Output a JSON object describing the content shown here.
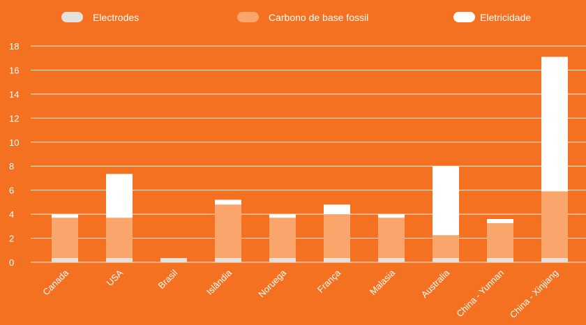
{
  "chart_data": {
    "type": "bar",
    "stacked": true,
    "categories": [
      "Canada",
      "USA",
      "Brasil",
      "Islândia",
      "Noruega",
      "França",
      "Malasia",
      "Australia",
      "China - Yunnan",
      "China - Xinjiang"
    ],
    "series": [
      {
        "name": "Electrodes",
        "color": "#E5E2DE",
        "values": [
          0.35,
          0.35,
          0.35,
          0.35,
          0.35,
          0.35,
          0.35,
          0.35,
          0.35,
          0.35
        ]
      },
      {
        "name": "Carbono de base fossil",
        "color": "#F9A56B",
        "values": [
          3.35,
          3.35,
          0.0,
          4.45,
          3.35,
          3.65,
          3.35,
          1.9,
          2.9,
          5.55
        ]
      },
      {
        "name": "Eletricidade",
        "color": "#FFFFFF",
        "values": [
          0.3,
          3.65,
          0.0,
          0.4,
          0.3,
          0.8,
          0.3,
          5.75,
          0.35,
          11.2
        ]
      }
    ],
    "ylim": [
      0,
      18
    ],
    "yticks": [
      "0",
      "2",
      "4",
      "6",
      "8",
      "10",
      "12",
      "14",
      "16",
      "18"
    ],
    "grid": true,
    "legend_position": "top"
  }
}
